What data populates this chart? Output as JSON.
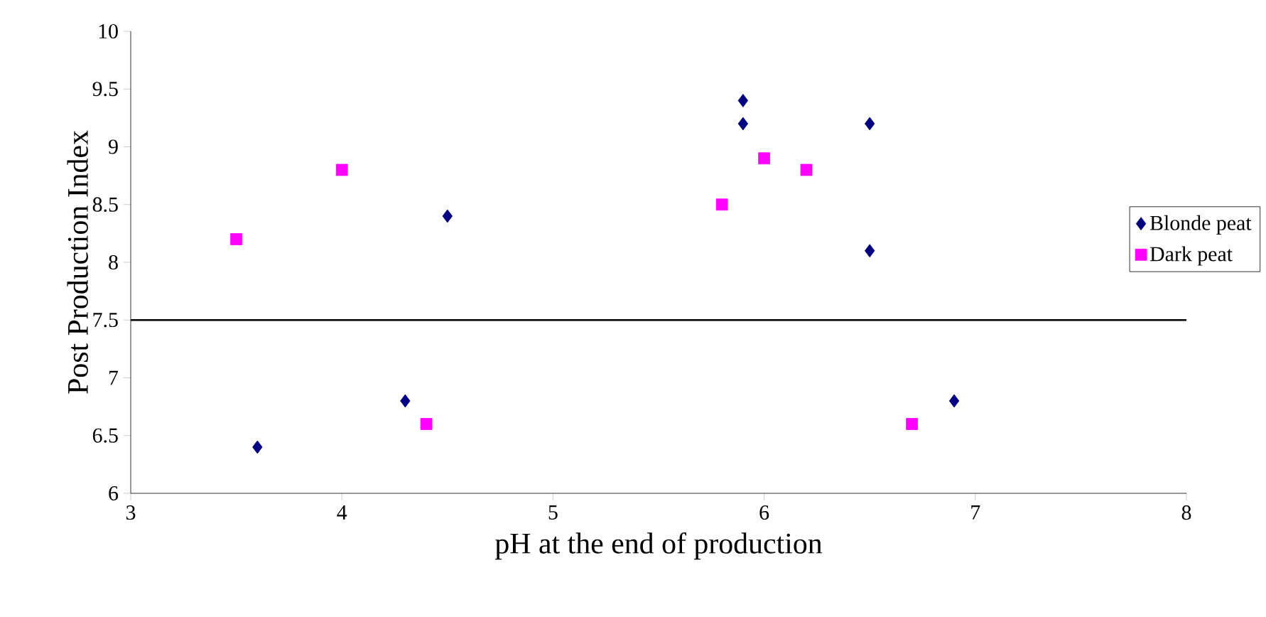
{
  "chart_data": {
    "type": "scatter",
    "xlabel": "pH at the end of production",
    "ylabel": "Post Production Index",
    "series": [
      {
        "name": "Blonde peat",
        "color": "#000080",
        "marker": "diamond",
        "x": [
          3.6,
          4.3,
          4.5,
          5.9,
          5.9,
          6.5,
          6.5,
          6.9
        ],
        "values": [
          6.4,
          6.8,
          8.4,
          9.4,
          9.2,
          9.2,
          8.1,
          6.8
        ]
      },
      {
        "name": "Dark peat",
        "color": "#ff00ff",
        "marker": "square",
        "x": [
          3.5,
          4.0,
          4.4,
          5.8,
          6.0,
          6.2,
          6.7
        ],
        "values": [
          8.2,
          8.8,
          6.6,
          8.5,
          8.9,
          8.8,
          6.6
        ]
      }
    ],
    "xlim": [
      3,
      8
    ],
    "xticks": [
      3,
      4,
      5,
      6,
      7,
      8
    ],
    "ylim": [
      6,
      10
    ],
    "yticks": [
      6,
      6.5,
      7,
      7.5,
      8,
      8.5,
      9,
      9.5,
      10
    ],
    "ref_lines": [
      {
        "axis": "y",
        "value": 7.5,
        "color": "#000000"
      }
    ],
    "grid": false,
    "legend": "right"
  }
}
